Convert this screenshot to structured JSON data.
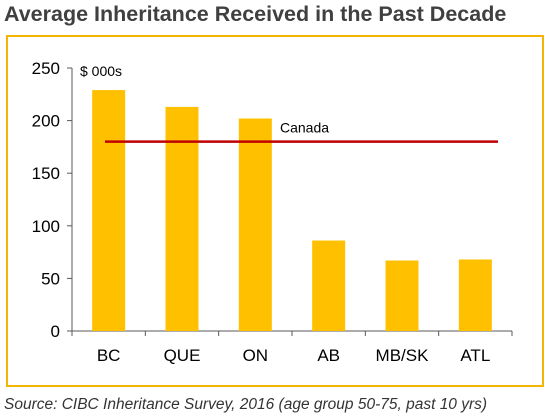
{
  "title": "Average Inheritance Received in the Past Decade",
  "source": "Source: CIBC Inheritance Survey, 2016 (age group 50-75, past 10 yrs)",
  "colors": {
    "bar": "#FFC000",
    "reference_line": "#C00000",
    "frame": "#F5B400",
    "title": "#404040"
  },
  "chart_data": {
    "type": "bar",
    "unit_label": "$ 000s",
    "categories": [
      "BC",
      "QUE",
      "ON",
      "AB",
      "MB/SK",
      "ATL"
    ],
    "values": [
      229,
      213,
      202,
      86,
      67,
      68
    ],
    "ylim": [
      0,
      250
    ],
    "yticks": [
      0,
      50,
      100,
      150,
      200,
      250
    ],
    "grid": false,
    "reference_line": {
      "label": "Canada",
      "value": 180
    }
  }
}
